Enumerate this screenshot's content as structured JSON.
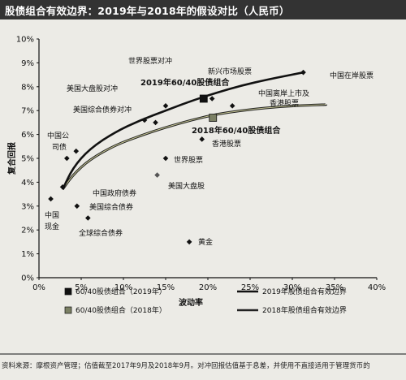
{
  "title": "股债组合有效边界：2019年与2018年的假设对比（人民币）",
  "source": "资料来源：摩根资产管理；估值截至2017年9月及2018年9月。对冲回报估值基于息差，并使用不直接适用于管理货币的",
  "colors": {
    "background": "#ecebe6",
    "title_bar": "#333333",
    "frontier_2019": "#111111",
    "frontier_2018": "#222222",
    "frontier_2018_inner": "#c8c896",
    "marker_2018": "#7b8064",
    "marker_default": "#111111",
    "marker_us_large_cap": "#555555"
  },
  "chart_data": {
    "type": "scatter",
    "xlabel": "波动率",
    "ylabel": "复合回报",
    "xlim": [
      0,
      40
    ],
    "ylim": [
      0,
      10
    ],
    "x_ticks": [
      "0%",
      "5%",
      "10%",
      "15%",
      "20%",
      "25%",
      "30%",
      "35%",
      "40%"
    ],
    "y_ticks": [
      "0%",
      "1%",
      "2%",
      "3%",
      "4%",
      "5%",
      "6%",
      "7%",
      "8%",
      "9%",
      "10%"
    ],
    "grid": false,
    "legend": {
      "placement": "bottom",
      "items": [
        {
          "label": "60/40股债组合（2019年）",
          "type": "marker",
          "color": "#111111"
        },
        {
          "label": "2019年股债组合有效边界",
          "type": "line",
          "color": "#111111"
        },
        {
          "label": "60/40股债组合（2018年）",
          "type": "marker",
          "color": "#7b8064"
        },
        {
          "label": "2018年股债组合有效边界",
          "type": "line",
          "color": "#222222"
        }
      ]
    },
    "points": [
      {
        "name": "中国在岸股票",
        "x": 31.3,
        "y": 8.6
      },
      {
        "name": "新兴市场股票",
        "x": 20.5,
        "y": 7.5
      },
      {
        "name": "世界股票对冲",
        "x": 15.0,
        "y": 7.2
      },
      {
        "name": "美国大盘股对冲",
        "x": 13.8,
        "y": 6.5
      },
      {
        "name": "美国综合债券对冲",
        "x": 12.5,
        "y": 6.6
      },
      {
        "name": "中国离岸上市及香港股票",
        "x": 22.9,
        "y": 7.2
      },
      {
        "name": "香港股票",
        "x": 19.3,
        "y": 5.8
      },
      {
        "name": "世界股票",
        "x": 15.0,
        "y": 5.0
      },
      {
        "name": "美国大盘股",
        "x": 14.0,
        "y": 4.3
      },
      {
        "name": "中国公司债",
        "x": 4.4,
        "y": 5.3
      },
      {
        "name": "",
        "x": 3.3,
        "y": 5.0
      },
      {
        "name": "中国政府债券",
        "x": 2.8,
        "y": 3.8
      },
      {
        "name": "美国综合债券",
        "x": 4.5,
        "y": 3.0
      },
      {
        "name": "全球综合债券",
        "x": 5.8,
        "y": 2.5
      },
      {
        "name": "中国现金",
        "x": 1.4,
        "y": 3.3
      },
      {
        "name": "黄金",
        "x": 17.8,
        "y": 1.5
      }
    ],
    "portfolios": [
      {
        "name": "2019年60/40股债组合",
        "x": 19.5,
        "y": 7.5,
        "color": "#111111"
      },
      {
        "name": "2018年60/40股债组合",
        "x": 20.6,
        "y": 6.7,
        "color": "#7b8064"
      }
    ],
    "frontiers": [
      {
        "name": "2019年股债组合有效边界",
        "x": [
          2.8,
          4,
          6,
          9,
          12,
          15,
          18,
          21,
          24,
          27,
          31.3
        ],
        "y": [
          3.7,
          4.6,
          5.4,
          6.1,
          6.6,
          7.0,
          7.4,
          7.75,
          8.05,
          8.3,
          8.6
        ]
      },
      {
        "name": "2018年股债组合有效边界",
        "x": [
          2.8,
          4,
          6,
          9,
          12,
          15,
          18,
          21,
          24,
          27,
          30,
          34
        ],
        "y": [
          3.7,
          4.3,
          4.95,
          5.55,
          5.95,
          6.3,
          6.6,
          6.85,
          7.0,
          7.12,
          7.2,
          7.25
        ]
      }
    ],
    "labels": {
      "china_onshore": "中国在岸股票",
      "em_equity": "新兴市场股票",
      "world_hedged": "世界股票对冲",
      "us_large_hedged": "美国大盘股对冲",
      "us_agg_hedged": "美国综合债券对冲",
      "china_offshore_1": "中国离岸上市及",
      "china_offshore_2": "香港股票",
      "hk_equity": "香港股票",
      "world_equity": "世界股票",
      "us_large": "美国大盘股",
      "china_corp_1": "中国公",
      "china_corp_2": "司债",
      "china_gov": "中国政府债券",
      "us_agg": "美国综合债券",
      "global_agg": "全球综合债券",
      "china_cash_1": "中国",
      "china_cash_2": "现金",
      "gold": "黄金",
      "pf2019": "2019年60/40股债组合",
      "pf2018": "2018年60/40股债组合"
    }
  }
}
